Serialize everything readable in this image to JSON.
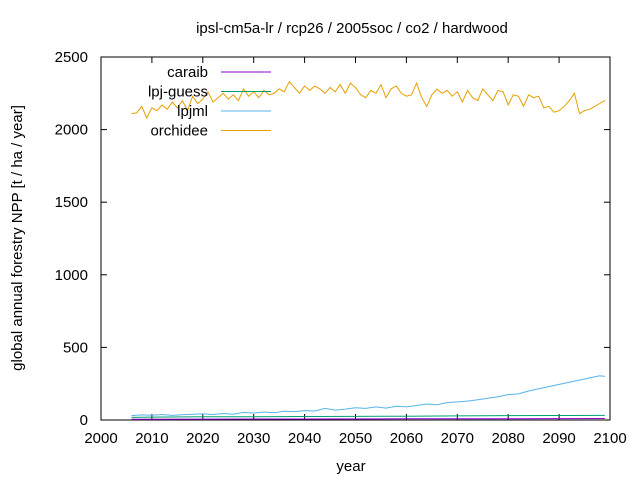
{
  "chart_data": {
    "type": "line",
    "title": "ipsl-cm5a-lr / rcp26 / 2005soc / co2 / hardwood",
    "xlabel": "year",
    "ylabel": "global annual forestry NPP [t / ha / year]",
    "xlim": [
      2000,
      2100
    ],
    "ylim": [
      0,
      2500
    ],
    "xticks": [
      "2000",
      "2010",
      "2020",
      "2030",
      "2040",
      "2050",
      "2060",
      "2070",
      "2080",
      "2090",
      "2100"
    ],
    "yticks": [
      "0",
      "500",
      "1000",
      "1500",
      "2000",
      "2500"
    ],
    "grid": false,
    "legend_position": "top-left",
    "series": [
      {
        "name": "caraib",
        "color": "#9400d3",
        "x": [
          2006,
          2020,
          2040,
          2060,
          2080,
          2099
        ],
        "values": [
          5,
          6,
          7,
          8,
          9,
          10
        ]
      },
      {
        "name": "lpj-guess",
        "color": "#009e73",
        "x": [
          2006,
          2010,
          2020,
          2030,
          2040,
          2050,
          2060,
          2070,
          2080,
          2090,
          2099
        ],
        "values": [
          18,
          20,
          22,
          23,
          24,
          25,
          26,
          28,
          30,
          31,
          32
        ]
      },
      {
        "name": "lpjml",
        "color": "#56b4e9",
        "x": [
          2006,
          2008,
          2010,
          2012,
          2014,
          2016,
          2018,
          2020,
          2022,
          2024,
          2026,
          2028,
          2030,
          2032,
          2034,
          2036,
          2038,
          2040,
          2042,
          2044,
          2046,
          2048,
          2050,
          2052,
          2054,
          2056,
          2058,
          2060,
          2062,
          2064,
          2066,
          2068,
          2070,
          2072,
          2074,
          2076,
          2078,
          2080,
          2082,
          2084,
          2086,
          2088,
          2090,
          2092,
          2094,
          2096,
          2098,
          2099
        ],
        "values": [
          30,
          35,
          33,
          38,
          32,
          36,
          40,
          42,
          38,
          45,
          40,
          52,
          48,
          55,
          50,
          60,
          58,
          65,
          62,
          80,
          68,
          75,
          85,
          80,
          90,
          82,
          95,
          90,
          100,
          110,
          105,
          120,
          125,
          130,
          140,
          150,
          160,
          175,
          180,
          200,
          215,
          230,
          245,
          260,
          275,
          290,
          305,
          300
        ]
      },
      {
        "name": "orchidee",
        "color": "#e69f00",
        "x": [
          2006,
          2007,
          2008,
          2009,
          2010,
          2011,
          2012,
          2013,
          2014,
          2015,
          2016,
          2017,
          2018,
          2019,
          2020,
          2021,
          2022,
          2023,
          2024,
          2025,
          2026,
          2027,
          2028,
          2029,
          2030,
          2031,
          2032,
          2033,
          2034,
          2035,
          2036,
          2037,
          2038,
          2039,
          2040,
          2041,
          2042,
          2043,
          2044,
          2045,
          2046,
          2047,
          2048,
          2049,
          2050,
          2051,
          2052,
          2053,
          2054,
          2055,
          2056,
          2057,
          2058,
          2059,
          2060,
          2061,
          2062,
          2063,
          2064,
          2065,
          2066,
          2067,
          2068,
          2069,
          2070,
          2071,
          2072,
          2073,
          2074,
          2075,
          2076,
          2077,
          2078,
          2079,
          2080,
          2081,
          2082,
          2083,
          2084,
          2085,
          2086,
          2087,
          2088,
          2089,
          2090,
          2091,
          2092,
          2093,
          2094,
          2095,
          2096,
          2097,
          2098,
          2099
        ],
        "values": [
          2110,
          2115,
          2160,
          2080,
          2150,
          2130,
          2170,
          2140,
          2190,
          2150,
          2200,
          2130,
          2230,
          2180,
          2210,
          2260,
          2190,
          2220,
          2250,
          2210,
          2240,
          2200,
          2280,
          2230,
          2260,
          2220,
          2270,
          2240,
          2250,
          2280,
          2260,
          2330,
          2290,
          2250,
          2300,
          2270,
          2300,
          2280,
          2250,
          2290,
          2260,
          2310,
          2250,
          2320,
          2290,
          2240,
          2220,
          2270,
          2250,
          2310,
          2220,
          2280,
          2300,
          2250,
          2230,
          2240,
          2320,
          2220,
          2160,
          2240,
          2280,
          2250,
          2270,
          2230,
          2260,
          2190,
          2270,
          2220,
          2200,
          2280,
          2240,
          2200,
          2270,
          2260,
          2170,
          2240,
          2230,
          2160,
          2240,
          2220,
          2230,
          2150,
          2160,
          2120,
          2130,
          2160,
          2200,
          2250,
          2110,
          2130,
          2140,
          2160,
          2180,
          2200
        ]
      }
    ]
  }
}
